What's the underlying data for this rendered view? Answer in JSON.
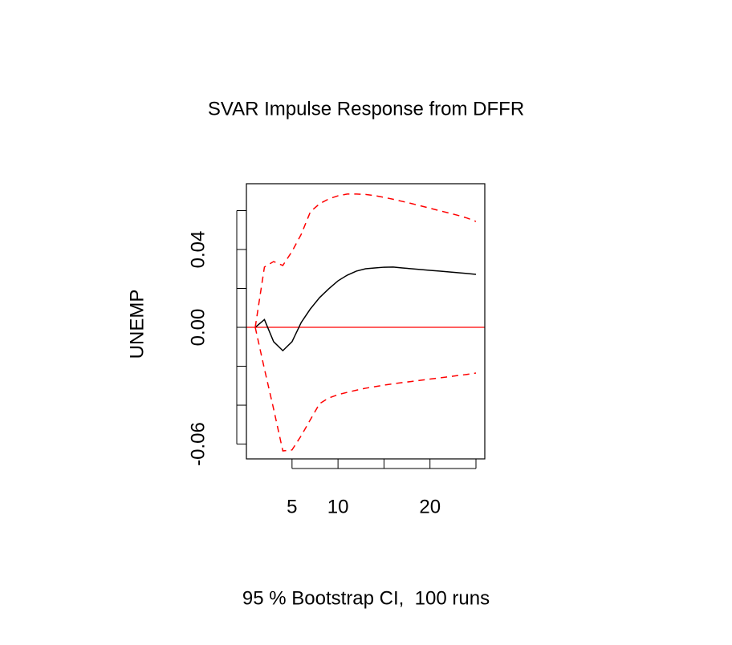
{
  "chart_data": {
    "type": "line",
    "title": "SVAR Impulse Response from DFFR",
    "y_label": "UNEMP",
    "x_label": "95 % Bootstrap CI,  100 runs",
    "x": [
      1,
      2,
      3,
      4,
      5,
      6,
      7,
      8,
      9,
      10,
      11,
      12,
      13,
      14,
      15,
      16,
      17,
      18,
      19,
      20,
      21,
      22,
      23,
      24,
      25
    ],
    "series": [
      {
        "color": "#000000",
        "line_style": "solid",
        "values": [
          0,
          0.004,
          -0.0074,
          -0.012,
          -0.0074,
          0.0025,
          0.0095,
          0.0153,
          0.0198,
          0.0239,
          0.0268,
          0.0289,
          0.0301,
          0.0305,
          0.0309,
          0.031,
          0.0305,
          0.0301,
          0.0297,
          0.0293,
          0.0289,
          0.0285,
          0.0281,
          0.0277,
          0.0272
        ]
      },
      {
        "color": "#ff0000",
        "line_style": "dashed",
        "values": [
          0,
          0.031,
          0.0338,
          0.0318,
          0.039,
          0.0478,
          0.0594,
          0.0635,
          0.066,
          0.0676,
          0.0685,
          0.0685,
          0.0683,
          0.0677,
          0.0668,
          0.0658,
          0.0647,
          0.0636,
          0.0624,
          0.0612,
          0.06,
          0.0588,
          0.0576,
          0.0562,
          0.0544
        ]
      },
      {
        "color": "#ff0000",
        "line_style": "dashed",
        "values": [
          0,
          -0.0214,
          -0.042,
          -0.0635,
          -0.063,
          -0.0557,
          -0.0474,
          -0.0392,
          -0.0363,
          -0.0346,
          -0.0334,
          -0.0323,
          -0.0313,
          -0.0305,
          -0.0297,
          -0.029,
          -0.0284,
          -0.0278,
          -0.0272,
          -0.0266,
          -0.026,
          -0.0254,
          -0.0248,
          -0.0242,
          -0.0235
        ]
      }
    ],
    "hline": {
      "value": 0,
      "color": "#ff0000"
    },
    "xlim": [
      0.04,
      25.96
    ],
    "ylim": [
      -0.0676,
      0.0738
    ],
    "xticks": [
      5,
      10,
      {
        "value": 15,
        "label": null
      },
      20,
      {
        "value": 25,
        "label": null
      }
    ],
    "yticks": [
      {
        "value": -0.06,
        "label": "-0.06"
      },
      {
        "value": -0.04,
        "label": null
      },
      {
        "value": -0.02,
        "label": null
      },
      {
        "value": 0,
        "label": "0.00"
      },
      {
        "value": 0.02,
        "label": null
      },
      {
        "value": 0.04,
        "label": "0.04"
      },
      {
        "value": 0.06,
        "label": null
      }
    ],
    "grid": false
  }
}
